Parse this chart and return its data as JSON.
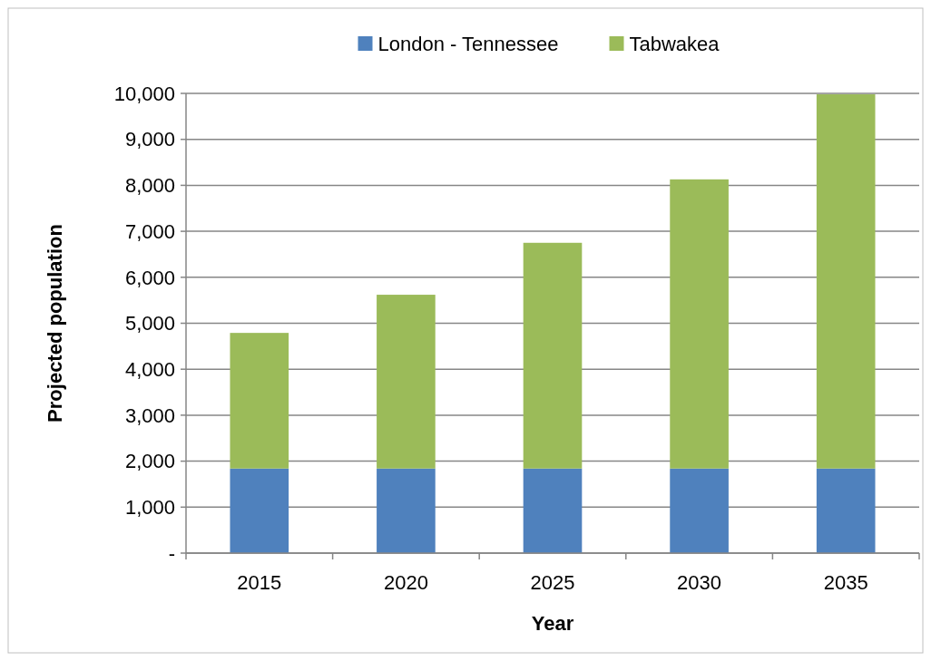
{
  "chart_data": {
    "type": "bar",
    "stacked": true,
    "xlabel": "Year",
    "ylabel": "Projected population",
    "categories": [
      "2015",
      "2020",
      "2025",
      "2030",
      "2035"
    ],
    "series": [
      {
        "name": "London - Tennessee",
        "color": "#4f81bd",
        "values": [
          1840,
          1840,
          1840,
          1840,
          1840
        ]
      },
      {
        "name": "Tabwakea",
        "color": "#9bbb59",
        "values": [
          2950,
          3780,
          4910,
          6290,
          8140
        ]
      }
    ],
    "ylim": [
      0,
      10000
    ],
    "yticks": [
      {
        "value": 0,
        "label": "-"
      },
      {
        "value": 1000,
        "label": "1,000"
      },
      {
        "value": 2000,
        "label": "2,000"
      },
      {
        "value": 3000,
        "label": "3,000"
      },
      {
        "value": 4000,
        "label": "4,000"
      },
      {
        "value": 5000,
        "label": "5,000"
      },
      {
        "value": 6000,
        "label": "6,000"
      },
      {
        "value": 7000,
        "label": "7,000"
      },
      {
        "value": 8000,
        "label": "8,000"
      },
      {
        "value": 9000,
        "label": "9,000"
      },
      {
        "value": 10000,
        "label": "10,000"
      }
    ],
    "grid": "y",
    "legend": "top"
  }
}
